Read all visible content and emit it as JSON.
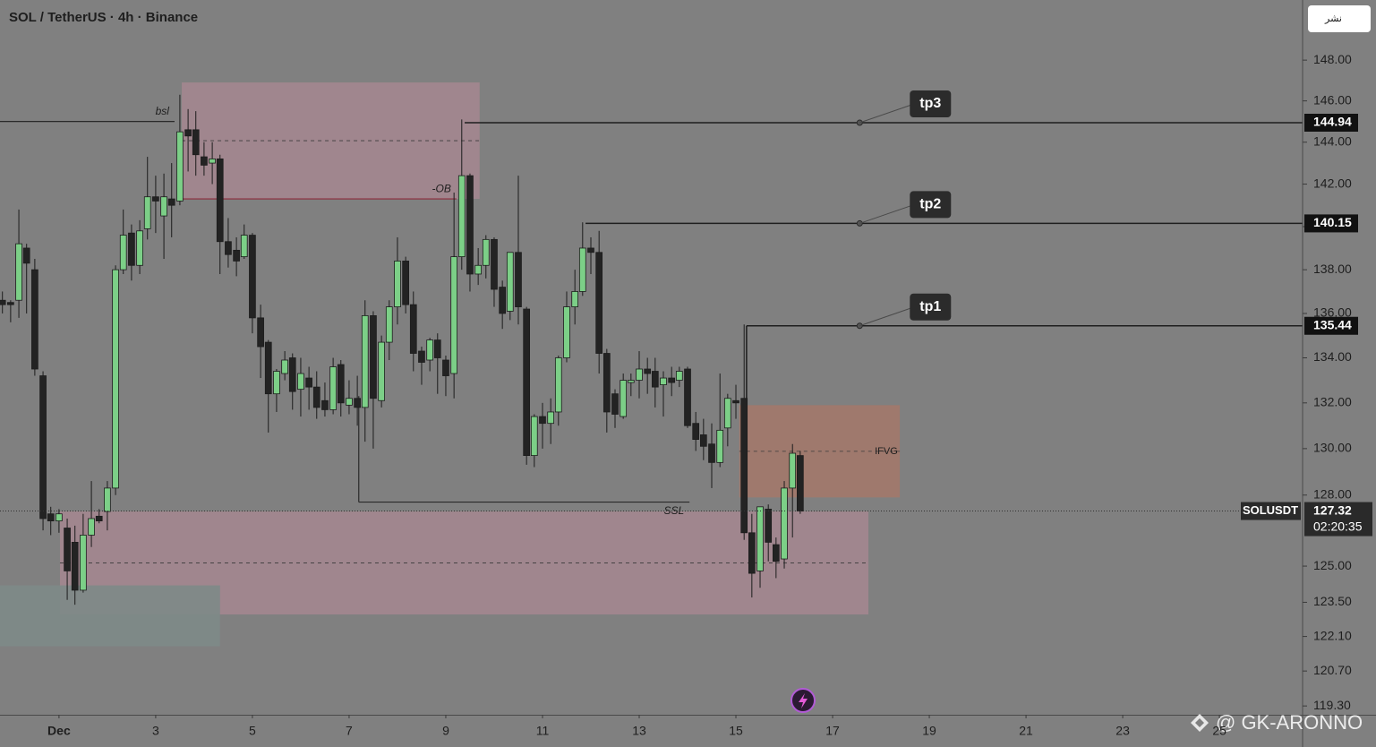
{
  "chart_data": {
    "type": "candlestick",
    "title": "SOL / TetherUS · 4h · Binance",
    "button": "نشر",
    "watermark": "@ GK-ARONNO",
    "up_color": "#7ccf87",
    "down_color": "#232323",
    "log_scale": true,
    "x": [
      -0.17,
      0,
      0.17,
      0.33,
      0.5,
      0.67,
      0.83,
      1,
      1.17,
      1.33,
      1.5,
      1.67,
      1.83,
      2,
      2.17,
      2.33,
      2.5,
      2.67,
      2.83,
      3,
      3.17,
      3.33,
      3.5,
      3.67,
      3.83,
      4,
      4.17,
      4.33,
      4.5,
      4.67,
      4.83,
      5,
      5.17,
      5.33,
      5.5,
      5.67,
      5.83,
      6,
      6.17,
      6.33,
      6.5,
      6.67,
      6.83,
      7,
      7.17,
      7.33,
      7.5,
      7.67,
      7.83,
      8,
      8.17,
      8.33,
      8.5,
      8.67,
      8.83,
      9,
      9.17,
      9.33,
      9.5,
      9.67,
      9.83,
      10,
      10.17,
      10.33,
      10.5,
      10.67,
      10.83,
      11,
      11.17,
      11.33,
      11.5,
      11.67,
      11.83,
      12,
      12.17,
      12.33,
      12.5,
      12.67,
      12.83,
      13,
      13.17,
      13.33,
      13.5,
      13.67,
      13.83,
      14,
      14.17,
      14.33,
      14.5,
      14.67,
      14.83,
      15,
      15.17,
      15.33,
      15.5,
      15.67,
      15.83,
      16,
      16.17,
      16.33
    ],
    "ohlc": [
      [
        136.6,
        137.0,
        136.0,
        136.4
      ],
      [
        136.5,
        136.6,
        135.6,
        136.4
      ],
      [
        136.6,
        140.8,
        135.8,
        139.2
      ],
      [
        139.0,
        139.2,
        136.0,
        138.3
      ],
      [
        138.0,
        138.5,
        133.2,
        133.5
      ],
      [
        133.2,
        133.4,
        126.5,
        127.0
      ],
      [
        127.2,
        127.5,
        126.3,
        126.9
      ],
      [
        126.9,
        127.4,
        126.4,
        127.2
      ],
      [
        126.6,
        127.0,
        123.6,
        124.8
      ],
      [
        126.0,
        126.7,
        123.4,
        124.0
      ],
      [
        124.0,
        127.2,
        123.9,
        126.3
      ],
      [
        126.3,
        128.6,
        125.8,
        127.0
      ],
      [
        127.1,
        127.4,
        126.8,
        126.9
      ],
      [
        127.3,
        128.6,
        126.5,
        128.3
      ],
      [
        128.3,
        138.2,
        128.0,
        138.0
      ],
      [
        138.0,
        140.8,
        137.8,
        139.6
      ],
      [
        139.7,
        140.1,
        137.5,
        138.2
      ],
      [
        138.2,
        140.3,
        137.8,
        139.8
      ],
      [
        139.9,
        143.3,
        139.4,
        141.4
      ],
      [
        141.4,
        142.4,
        139.7,
        141.2
      ],
      [
        140.5,
        142.5,
        138.5,
        141.4
      ],
      [
        141.3,
        143.0,
        139.5,
        141.0
      ],
      [
        141.2,
        146.3,
        141.0,
        144.5
      ],
      [
        144.6,
        145.6,
        142.6,
        144.3
      ],
      [
        144.6,
        145.5,
        142.4,
        143.4
      ],
      [
        143.3,
        144.0,
        142.4,
        142.9
      ],
      [
        143.0,
        144.0,
        142.0,
        143.2
      ],
      [
        143.2,
        143.4,
        137.8,
        139.3
      ],
      [
        139.3,
        140.4,
        138.1,
        138.7
      ],
      [
        138.9,
        139.5,
        137.7,
        138.4
      ],
      [
        138.6,
        140.1,
        138.5,
        139.6
      ],
      [
        139.6,
        139.7,
        135.1,
        135.8
      ],
      [
        135.8,
        136.4,
        133.1,
        134.5
      ],
      [
        134.7,
        134.8,
        130.7,
        132.4
      ],
      [
        132.4,
        133.5,
        131.6,
        133.4
      ],
      [
        133.3,
        134.3,
        133.0,
        133.9
      ],
      [
        134.0,
        134.2,
        131.7,
        132.5
      ],
      [
        132.6,
        134.0,
        131.4,
        133.3
      ],
      [
        133.1,
        133.6,
        131.7,
        132.7
      ],
      [
        132.7,
        133.4,
        131.3,
        131.8
      ],
      [
        132.1,
        132.9,
        131.4,
        131.7
      ],
      [
        131.7,
        134.0,
        131.5,
        133.6
      ],
      [
        133.7,
        133.9,
        131.4,
        132.0
      ],
      [
        131.9,
        133.0,
        131.5,
        132.2
      ],
      [
        132.2,
        133.2,
        131.0,
        131.8
      ],
      [
        131.8,
        136.6,
        130.3,
        135.9
      ],
      [
        135.9,
        136.1,
        130.0,
        132.2
      ],
      [
        132.1,
        135.0,
        131.8,
        134.7
      ],
      [
        134.7,
        136.6,
        133.9,
        136.3
      ],
      [
        136.3,
        139.5,
        135.5,
        138.4
      ],
      [
        138.4,
        138.6,
        136.0,
        136.4
      ],
      [
        136.4,
        137.0,
        133.4,
        134.2
      ],
      [
        134.3,
        134.5,
        132.8,
        133.8
      ],
      [
        133.9,
        134.9,
        133.4,
        134.8
      ],
      [
        134.8,
        135.1,
        132.4,
        134.0
      ],
      [
        133.9,
        134.1,
        132.3,
        133.2
      ],
      [
        133.3,
        141.6,
        132.2,
        138.6
      ],
      [
        138.6,
        145.1,
        138.0,
        142.4
      ],
      [
        142.4,
        142.5,
        137.0,
        137.8
      ],
      [
        137.8,
        139.0,
        137.3,
        138.2
      ],
      [
        138.2,
        139.6,
        137.6,
        139.4
      ],
      [
        139.4,
        139.5,
        136.3,
        137.1
      ],
      [
        137.2,
        137.5,
        135.3,
        136.0
      ],
      [
        136.1,
        138.8,
        135.7,
        138.8
      ],
      [
        138.8,
        142.4,
        135.5,
        136.3
      ],
      [
        136.2,
        136.3,
        129.3,
        129.7
      ],
      [
        129.7,
        131.5,
        129.2,
        131.4
      ],
      [
        131.4,
        132.0,
        130.0,
        131.1
      ],
      [
        131.1,
        132.2,
        130.2,
        131.6
      ],
      [
        131.6,
        134.1,
        131.0,
        134.0
      ],
      [
        134.0,
        137.0,
        133.8,
        136.3
      ],
      [
        136.3,
        138.0,
        135.5,
        137.0
      ],
      [
        137.0,
        140.2,
        136.8,
        139.0
      ],
      [
        139.0,
        139.5,
        137.8,
        138.8
      ],
      [
        138.8,
        139.8,
        133.3,
        134.2
      ],
      [
        134.2,
        134.4,
        130.7,
        131.6
      ],
      [
        132.4,
        132.6,
        130.9,
        131.5
      ],
      [
        131.4,
        133.3,
        131.3,
        133.0
      ],
      [
        132.9,
        133.3,
        132.3,
        133.0
      ],
      [
        133.0,
        134.3,
        132.2,
        133.5
      ],
      [
        133.5,
        134.0,
        132.4,
        133.3
      ],
      [
        133.4,
        134.0,
        131.8,
        132.7
      ],
      [
        132.8,
        133.4,
        131.4,
        133.1
      ],
      [
        133.1,
        133.6,
        132.3,
        132.9
      ],
      [
        133.0,
        133.6,
        132.7,
        133.4
      ],
      [
        133.5,
        133.6,
        130.9,
        131.0
      ],
      [
        131.1,
        131.6,
        129.9,
        130.4
      ],
      [
        130.6,
        131.3,
        129.5,
        130.1
      ],
      [
        130.2,
        131.1,
        128.3,
        129.4
      ],
      [
        129.4,
        133.3,
        129.2,
        130.8
      ],
      [
        130.9,
        132.4,
        130.1,
        132.2
      ],
      [
        132.1,
        132.8,
        131.3,
        132.0
      ],
      [
        132.2,
        135.5,
        126.1,
        126.4
      ],
      [
        126.4,
        127.2,
        123.7,
        124.7
      ],
      [
        124.8,
        127.5,
        124.1,
        127.5
      ],
      [
        127.4,
        127.6,
        125.2,
        126.0
      ],
      [
        125.9,
        126.2,
        124.5,
        125.2
      ],
      [
        125.3,
        128.6,
        124.9,
        128.3
      ],
      [
        128.3,
        130.2,
        126.2,
        129.8
      ],
      [
        129.7,
        129.9,
        127.2,
        127.32
      ]
    ],
    "xlim": [
      -0.22,
      26.72
    ],
    "xticks": [
      {
        "value": 1,
        "label": "Dec"
      },
      3,
      5,
      7,
      9,
      11,
      13,
      15,
      17,
      19,
      21,
      23,
      25
    ],
    "ylim": [
      118.95,
      151.0
    ],
    "yticks": [
      {
        "value": 148,
        "label": "148.00"
      },
      {
        "value": 146,
        "label": "146.00"
      },
      {
        "value": 144,
        "label": "144.00"
      },
      {
        "value": 142,
        "label": "142.00"
      },
      {
        "value": 140,
        "label": "140.00"
      },
      {
        "value": 138,
        "label": "138.00"
      },
      {
        "value": 136,
        "label": "136.00"
      },
      {
        "value": 134,
        "label": "134.00"
      },
      {
        "value": 132,
        "label": "132.00"
      },
      {
        "value": 130,
        "label": "130.00"
      },
      {
        "value": 128,
        "label": "128.00"
      },
      {
        "value": 125,
        "label": "125.00"
      },
      {
        "value": 123.5,
        "label": "123.50"
      },
      {
        "value": 122.1,
        "label": "122.10"
      },
      {
        "value": 120.7,
        "label": "120.70"
      },
      {
        "value": 119.3,
        "label": "119.30"
      }
    ],
    "zones": [
      {
        "x": [
          3.54,
          9.7
        ],
        "y": [
          141.3,
          146.9
        ],
        "color": "#a3868f",
        "midline": true
      },
      {
        "x": [
          1.02,
          17.74
        ],
        "y": [
          123.0,
          127.3
        ],
        "color": "#a3868f",
        "midline": true
      },
      {
        "x": [
          15.07,
          18.39
        ],
        "y": [
          127.9,
          131.9
        ],
        "color": "#a2786a",
        "midline": true,
        "label": "IFVG"
      },
      {
        "x": [
          -0.22,
          4.33
        ],
        "y": [
          121.7,
          124.2
        ],
        "color": "#7d8987",
        "midline": false
      }
    ],
    "lines": [
      {
        "label": "bsl",
        "value": 145.0,
        "x": [
          -0.22,
          3.39
        ],
        "color": "#2a2a2a"
      },
      {
        "label": "-OB",
        "value": 141.3,
        "x": [
          3.54,
          9.22
        ],
        "color": "#8b2a3a"
      },
      {
        "label": "SSL",
        "value": 127.7,
        "x": [
          7.2,
          14.04
        ],
        "color": "#2a2a2a",
        "anchor": 132.3
      }
    ],
    "levels": [
      {
        "label": "tp3",
        "value": 144.94,
        "x": 9.39,
        "callout": 17.56
      },
      {
        "label": "tp2",
        "value": 140.15,
        "x": 11.89,
        "callout": 17.56
      },
      {
        "label": "tp1",
        "value": 135.44,
        "x": 15.22,
        "callout": 17.56,
        "anchor": 131.9
      }
    ],
    "last": {
      "symbol": "SOLUSDT",
      "value": 127.32,
      "countdown": "02:20:35"
    }
  }
}
